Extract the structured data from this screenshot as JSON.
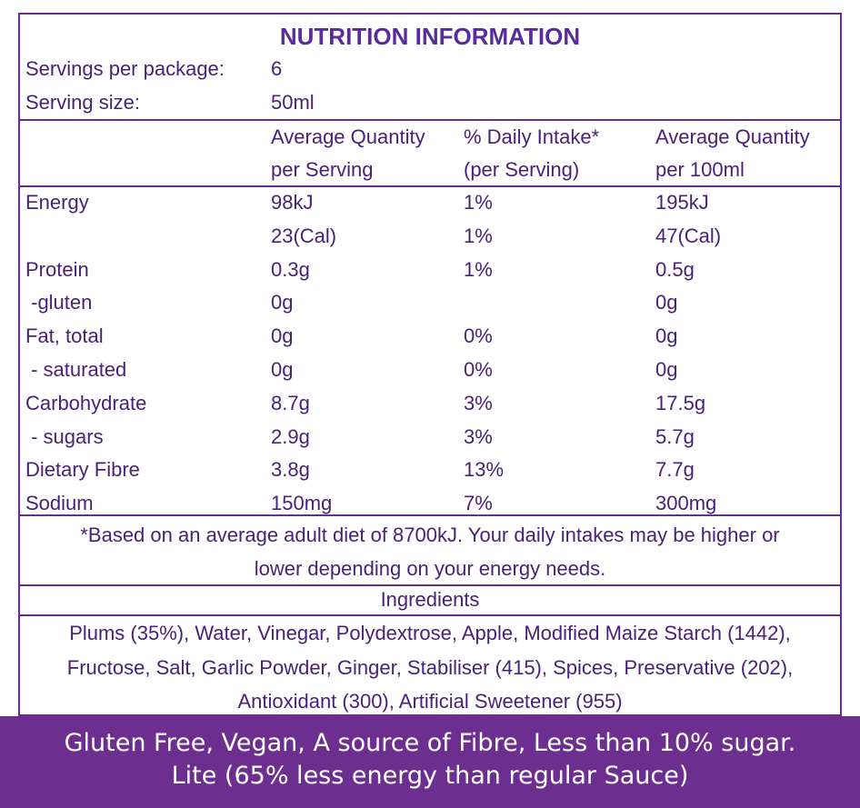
{
  "title": "NUTRITION INFORMATION",
  "servings": {
    "per_package_label": "Servings per package:",
    "per_package_value": "6",
    "size_label": "Serving size:",
    "size_value": "50ml"
  },
  "headers": {
    "col1": [
      "Average Quantity",
      "per Serving"
    ],
    "col2": [
      "% Daily Intake*",
      "(per Serving)"
    ],
    "col3": [
      "Average Quantity",
      "per 100ml"
    ]
  },
  "rows": [
    {
      "label": "Energy",
      "serving": "98kJ",
      "di": "1%",
      "per100": "195kJ"
    },
    {
      "label": "",
      "serving": "23(Cal)",
      "di": "1%",
      "per100": "47(Cal)"
    },
    {
      "label": "Protein",
      "serving": "0.3g",
      "di": "1%",
      "per100": "0.5g"
    },
    {
      "label": " -gluten",
      "serving": "0g",
      "di": "",
      "per100": "0g"
    },
    {
      "label": "Fat, total",
      "serving": "0g",
      "di": "0%",
      "per100": "0g"
    },
    {
      "label": " - saturated",
      "serving": "0g",
      "di": "0%",
      "per100": "0g"
    },
    {
      "label": "Carbohydrate",
      "serving": "8.7g",
      "di": "3%",
      "per100": "17.5g"
    },
    {
      "label": " - sugars",
      "serving": "2.9g",
      "di": "3%",
      "per100": "5.7g"
    },
    {
      "label": "Dietary Fibre",
      "serving": "3.8g",
      "di": "13%",
      "per100": "7.7g"
    },
    {
      "label": "Sodium",
      "serving": "150mg",
      "di": "7%",
      "per100": "300mg"
    }
  ],
  "footnote": [
    "*Based on an average adult diet of 8700kJ. Your daily intakes may be higher or",
    "lower depending on your energy needs."
  ],
  "ingredients_title": "Ingredients",
  "ingredients": [
    "Plums (35%), Water, Vinegar, Polydextrose, Apple, Modified Maize Starch (1442),",
    "Fructose, Salt, Garlic Powder, Ginger, Stabiliser (415), Spices, Preservative (202),",
    "Antioxidant (300), Artificial Sweetener (955)"
  ],
  "banner": [
    "Gluten Free, Vegan, A source of Fibre, Less than 10% sugar.",
    "Lite (65% less energy than regular Sauce)"
  ],
  "colors": {
    "border": "#6a2c91",
    "text": "#4a2178",
    "title": "#5a2b9a",
    "banner_bg": "#6d2f8f",
    "banner_text": "#ffffff"
  }
}
